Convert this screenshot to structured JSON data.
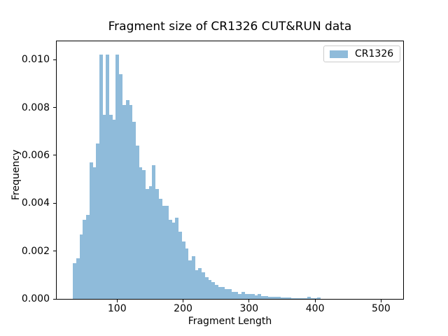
{
  "chart_data": {
    "type": "bar",
    "subtype": "histogram",
    "title": "Fragment size of CR1326 CUT&RUN data",
    "xlabel": "Fragment Length",
    "ylabel": "Frequency",
    "legend": {
      "position": "upper right",
      "entries": [
        "CR1326"
      ]
    },
    "bar_color": "#8fbbda",
    "grid": false,
    "xlim": [
      8.5,
      533.5
    ],
    "ylim": [
      0,
      0.01077
    ],
    "xticks": [
      {
        "value": 100,
        "label": "100"
      },
      {
        "value": 200,
        "label": "200"
      },
      {
        "value": 300,
        "label": "300"
      },
      {
        "value": 400,
        "label": "400"
      },
      {
        "value": 500,
        "label": "500"
      }
    ],
    "yticks": [
      {
        "value": 0.0,
        "label": "0.000"
      },
      {
        "value": 0.002,
        "label": "0.002"
      },
      {
        "value": 0.004,
        "label": "0.004"
      },
      {
        "value": 0.006,
        "label": "0.006"
      },
      {
        "value": 0.008,
        "label": "0.008"
      },
      {
        "value": 0.01,
        "label": "0.010"
      }
    ],
    "bins": {
      "start": 33,
      "width": 5
    },
    "frequencies": [
      0.0015,
      0.0017,
      0.0027,
      0.0033,
      0.0035,
      0.0057,
      0.0055,
      0.0065,
      0.0102,
      0.0077,
      0.0102,
      0.0077,
      0.0075,
      0.0102,
      0.0094,
      0.0081,
      0.0083,
      0.0081,
      0.0074,
      0.0064,
      0.0055,
      0.0054,
      0.0046,
      0.0047,
      0.0056,
      0.0046,
      0.0042,
      0.0039,
      0.0039,
      0.0033,
      0.0032,
      0.0034,
      0.0028,
      0.0024,
      0.0021,
      0.0016,
      0.0018,
      0.0012,
      0.0013,
      0.0011,
      0.0009,
      0.0008,
      0.0007,
      0.0006,
      0.0005,
      0.0005,
      0.0004,
      0.0004,
      0.0003,
      0.0003,
      0.0002,
      0.0003,
      0.0002,
      0.0002,
      0.0002,
      0.00015,
      0.0002,
      0.00012,
      0.00012,
      0.0001,
      0.0001,
      8e-05,
      8e-05,
      6e-05,
      5e-05,
      5e-05,
      4e-05,
      4e-05,
      3e-05,
      3e-05,
      2e-05,
      0.0001,
      3e-05,
      3e-05,
      5e-05
    ]
  }
}
